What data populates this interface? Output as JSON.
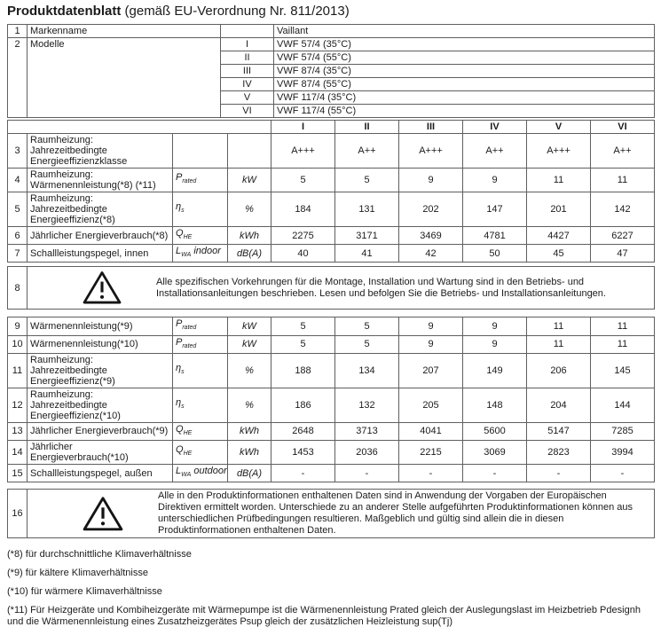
{
  "title": {
    "main": "Produktdatenblatt",
    "suffix": " (gemäß EU-Verordnung Nr. 811/2013)"
  },
  "top_table": {
    "row1": {
      "num": "1",
      "label": "Markenname",
      "value": "Vaillant"
    },
    "modelle": {
      "num": "2",
      "label": "Modelle"
    },
    "models": [
      {
        "roman": "I",
        "name": "VWF 57/4 (35°C)"
      },
      {
        "roman": "II",
        "name": "VWF 57/4 (55°C)"
      },
      {
        "roman": "III",
        "name": "VWF 87/4 (35°C)"
      },
      {
        "roman": "IV",
        "name": "VWF 87/4 (55°C)"
      },
      {
        "roman": "V",
        "name": "VWF 117/4 (35°C)"
      },
      {
        "roman": "VI",
        "name": "VWF 117/4 (55°C)"
      }
    ]
  },
  "column_headers": [
    "I",
    "II",
    "III",
    "IV",
    "V",
    "VI"
  ],
  "rows_main": [
    {
      "num": "3",
      "label": "Raumheizung: Jahrezeitbedingte Energieeffizienzklasse",
      "symbol": "",
      "sub": "",
      "suffix": "",
      "unit": "",
      "values": [
        "A+++",
        "A++",
        "A+++",
        "A++",
        "A+++",
        "A++"
      ]
    },
    {
      "num": "4",
      "label": "Raumheizung: Wärmenennleistung(*8) (*11)",
      "symbol": "P",
      "sub": "rated",
      "suffix": "",
      "unit": "kW",
      "values": [
        "5",
        "5",
        "9",
        "9",
        "11",
        "11"
      ]
    },
    {
      "num": "5",
      "label": "Raumheizung: Jahrezeitbedingte Energieeffizienz(*8)",
      "symbol": "η",
      "sub": "s",
      "suffix": "",
      "unit": "%",
      "values": [
        "184",
        "131",
        "202",
        "147",
        "201",
        "142"
      ]
    },
    {
      "num": "6",
      "label": "Jährlicher Energieverbrauch(*8)",
      "symbol": "Q",
      "sub": "HE",
      "suffix": "",
      "unit": "kWh",
      "values": [
        "2275",
        "3171",
        "3469",
        "4781",
        "4427",
        "6227"
      ]
    },
    {
      "num": "7",
      "label": "Schallleistungspegel, innen",
      "symbol": "L",
      "sub": "WA",
      "suffix": " indoor",
      "unit": "dB(A)",
      "values": [
        "40",
        "41",
        "42",
        "50",
        "45",
        "47"
      ]
    }
  ],
  "warning_row_8": {
    "num": "8",
    "text": "Alle spezifischen Vorkehrungen für die Montage, Installation und Wartung sind in den Betriebs- und Installationsanleitungen beschrieben. Lesen und befolgen Sie die Betriebs- und Installationsanleitungen."
  },
  "rows_climate": [
    {
      "num": "9",
      "label": "Wärmenennleistung(*9)",
      "symbol": "P",
      "sub": "rated",
      "suffix": "",
      "unit": "kW",
      "values": [
        "5",
        "5",
        "9",
        "9",
        "11",
        "11"
      ]
    },
    {
      "num": "10",
      "label": "Wärmenennleistung(*10)",
      "symbol": "P",
      "sub": "rated",
      "suffix": "",
      "unit": "kW",
      "values": [
        "5",
        "5",
        "9",
        "9",
        "11",
        "11"
      ]
    },
    {
      "num": "11",
      "label": "Raumheizung: Jahrezeitbedingte Energieeffizienz(*9)",
      "symbol": "η",
      "sub": "s",
      "suffix": "",
      "unit": "%",
      "values": [
        "188",
        "134",
        "207",
        "149",
        "206",
        "145"
      ]
    },
    {
      "num": "12",
      "label": "Raumheizung: Jahrezeitbedingte Energieeffizienz(*10)",
      "symbol": "η",
      "sub": "s",
      "suffix": "",
      "unit": "%",
      "values": [
        "186",
        "132",
        "205",
        "148",
        "204",
        "144"
      ]
    },
    {
      "num": "13",
      "label": "Jährlicher Energieverbrauch(*9)",
      "symbol": "Q",
      "sub": "HE",
      "suffix": "",
      "unit": "kWh",
      "values": [
        "2648",
        "3713",
        "4041",
        "5600",
        "5147",
        "7285"
      ]
    },
    {
      "num": "14",
      "label": "Jährlicher Energieverbrauch(*10)",
      "symbol": "Q",
      "sub": "HE",
      "suffix": "",
      "unit": "kWh",
      "values": [
        "1453",
        "2036",
        "2215",
        "3069",
        "2823",
        "3994"
      ]
    },
    {
      "num": "15",
      "label": "Schallleistungspegel, außen",
      "symbol": "L",
      "sub": "WA",
      "suffix": " outdoor",
      "unit": "dB(A)",
      "values": [
        "-",
        "-",
        "-",
        "-",
        "-",
        "-"
      ]
    }
  ],
  "warning_row_16": {
    "num": "16",
    "text": "Alle in den Produktinformationen enthaltenen Daten sind in Anwendung der Vorgaben der Europäischen Direktiven ermittelt worden. Unterschiede zu an anderer Stelle aufgeführten Produktinformationen können aus unterschiedlichen Prüfbedingungen resultieren. Maßgeblich und gültig sind allein die in diesen Produktinformationen enthaltenen Daten."
  },
  "footnotes": [
    "(*8) für durchschnittliche Klimaverhältnisse",
    "(*9) für kältere Klimaverhältnisse",
    "(*10) für wärmere Klimaverhältnisse",
    "(*11) Für Heizgeräte und Kombiheizgeräte mit Wärmepumpe ist die Wärmenennleistung Prated gleich der Auslegungslast im Heizbetrieb Pdesignh und die Wärmenennleistung eines Zusatzheizgerätes Psup gleich der zusätzlichen Heizleistung sup(Tj)"
  ]
}
